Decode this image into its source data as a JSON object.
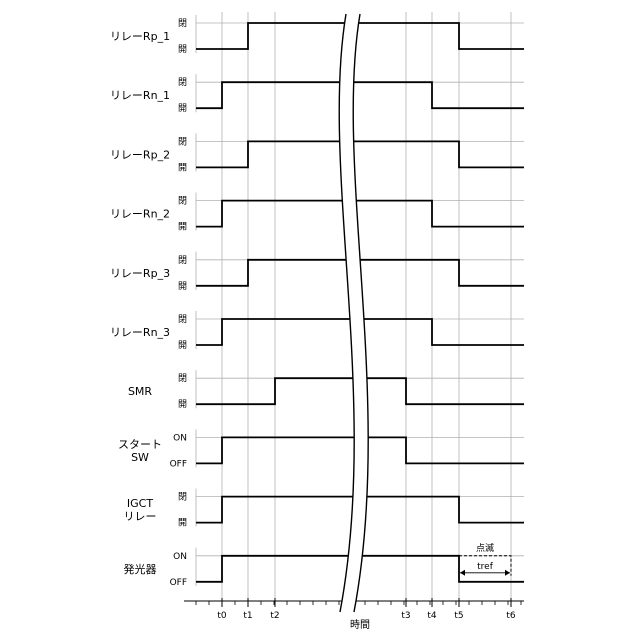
{
  "axis": {
    "label": "時間",
    "ticks": [
      {
        "name": "t0",
        "t": 0
      },
      {
        "name": "t1",
        "t": 1
      },
      {
        "name": "t2",
        "t": 2
      },
      {
        "name": "t3",
        "t": 3
      },
      {
        "name": "t4",
        "t": 4
      },
      {
        "name": "t5",
        "t": 5
      },
      {
        "name": "t6",
        "t": 6
      }
    ]
  },
  "signals": [
    {
      "label": [
        "リレーRp_1"
      ],
      "high": "閉",
      "low": "開",
      "on": "t1",
      "off": "t5"
    },
    {
      "label": [
        "リレーRn_1"
      ],
      "high": "閉",
      "low": "開",
      "on": "t0",
      "off": "t4"
    },
    {
      "label": [
        "リレーRp_2"
      ],
      "high": "閉",
      "low": "開",
      "on": "t1",
      "off": "t5"
    },
    {
      "label": [
        "リレーRn_2"
      ],
      "high": "閉",
      "low": "開",
      "on": "t0",
      "off": "t4"
    },
    {
      "label": [
        "リレーRp_3"
      ],
      "high": "閉",
      "low": "開",
      "on": "t1",
      "off": "t5"
    },
    {
      "label": [
        "リレーRn_3"
      ],
      "high": "閉",
      "low": "開",
      "on": "t0",
      "off": "t4"
    },
    {
      "label": [
        "SMR"
      ],
      "high": "閉",
      "low": "開",
      "on": "t2",
      "off": "t3"
    },
    {
      "label": [
        "スタート",
        "SW"
      ],
      "high": "ON",
      "low": "OFF",
      "on": "t0",
      "off": "t3"
    },
    {
      "label": [
        "IGCT",
        "リレー"
      ],
      "high": "閉",
      "low": "開",
      "on": "t0",
      "off": "t5"
    },
    {
      "label": [
        "発光器"
      ],
      "high": "ON",
      "low": "OFF",
      "on": "t0",
      "off": "t5",
      "blink_until": "t6"
    }
  ],
  "annotations": {
    "blink": "点滅",
    "tref": "tref"
  },
  "colors": {
    "line": "#000000",
    "guide": "#b0b0b0"
  }
}
